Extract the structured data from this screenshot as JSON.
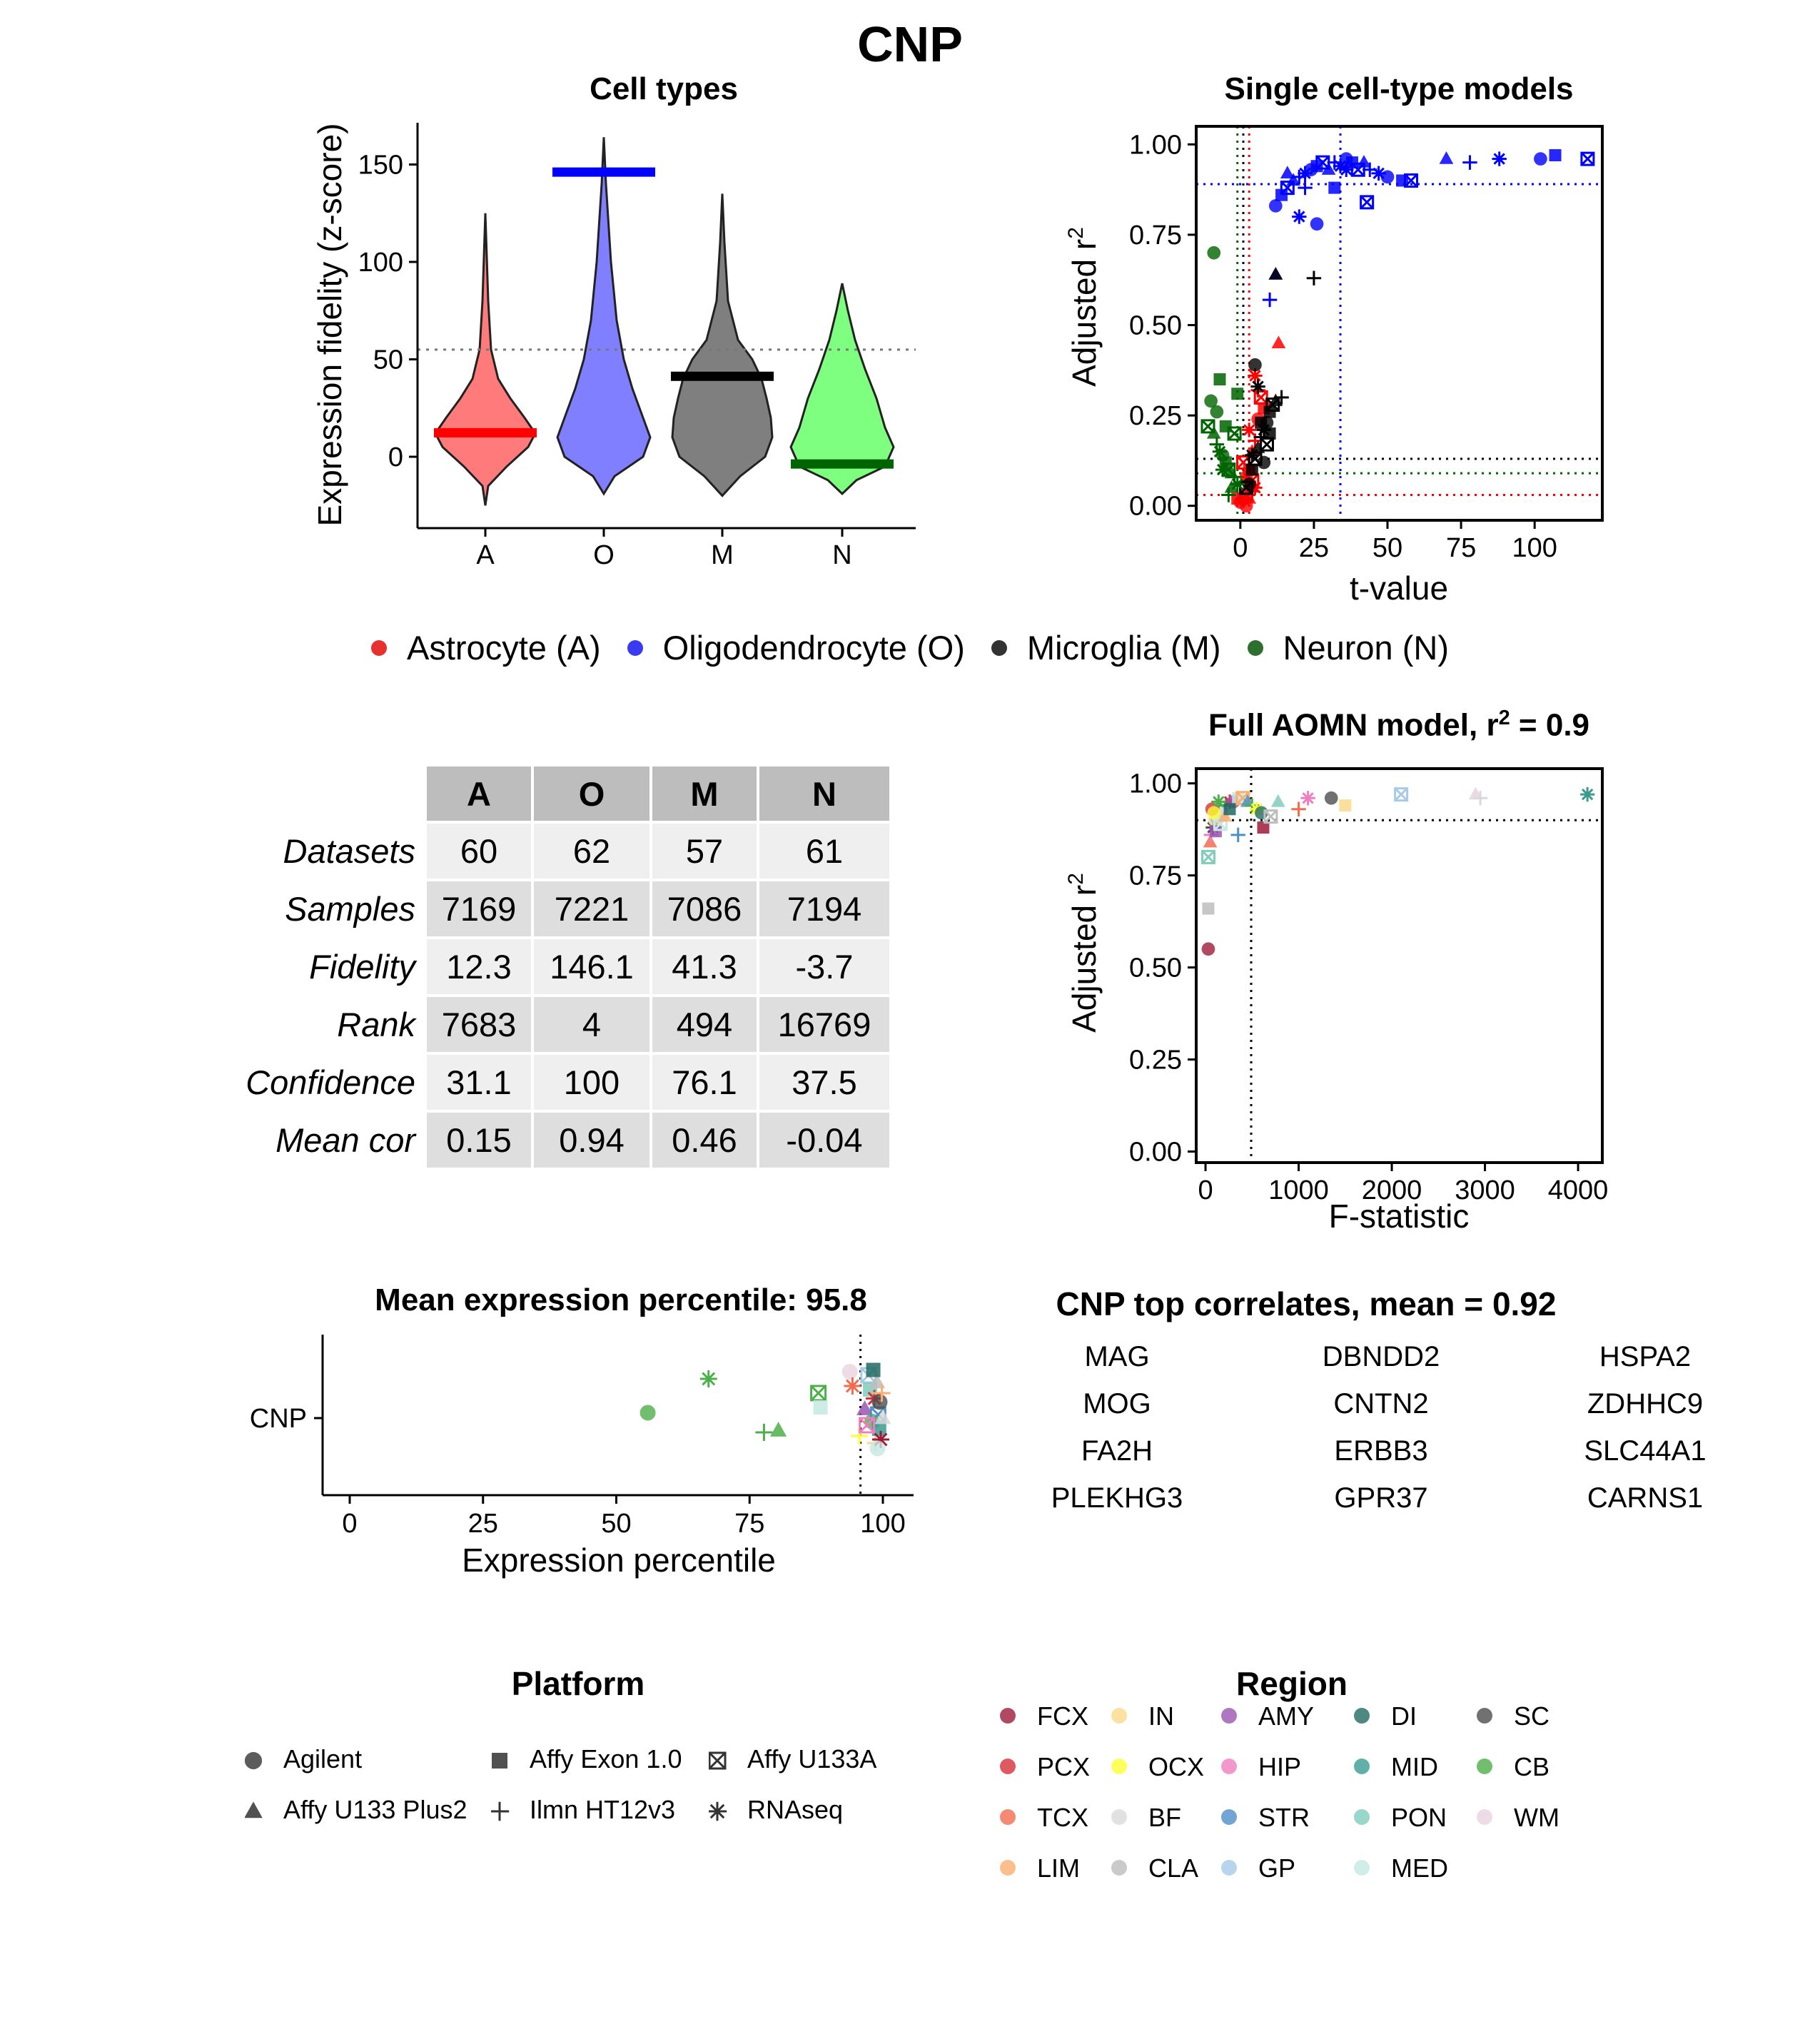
{
  "title": "CNP",
  "colors": {
    "astrocyte": "#ff0000",
    "oligodendrocyte": "#0000ff",
    "microglia": "#000000",
    "neuron": "#006400",
    "violin_fill": [
      "#ff7a7a",
      "#7f7fff",
      "#7f7f7f",
      "#7fff7f"
    ]
  },
  "cell_types_panel": {
    "title": "Cell types",
    "ylabel": "Expression fidelity (z-score)",
    "yticks": [
      "0",
      "50",
      "100",
      "150"
    ],
    "categories": [
      "A",
      "O",
      "M",
      "N"
    ]
  },
  "single_models_panel": {
    "title": "Single cell-type models",
    "xlabel": "t-value",
    "ylabel": "Adjusted r",
    "ylabel_sup": "2",
    "xticks": [
      "0",
      "25",
      "50",
      "75",
      "100"
    ],
    "yticks": [
      "0.00",
      "0.25",
      "0.50",
      "0.75",
      "1.00"
    ]
  },
  "legend": {
    "items": [
      {
        "label": "Astrocyte (A)",
        "color": "#ff0000"
      },
      {
        "label": "Oligodendrocyte (O)",
        "color": "#0000ff"
      },
      {
        "label": "Microglia (M)",
        "color": "#000000"
      },
      {
        "label": "Neuron (N)",
        "color": "#006400"
      }
    ]
  },
  "stats_table": {
    "columns": [
      "A",
      "O",
      "M",
      "N"
    ],
    "rows": [
      {
        "label": "Datasets",
        "values": [
          "60",
          "62",
          "57",
          "61"
        ]
      },
      {
        "label": "Samples",
        "values": [
          "7169",
          "7221",
          "7086",
          "7194"
        ]
      },
      {
        "label": "Fidelity",
        "values": [
          "12.3",
          "146.1",
          "41.3",
          "-3.7"
        ]
      },
      {
        "label": "Rank",
        "values": [
          "7683",
          "4",
          "494",
          "16769"
        ]
      },
      {
        "label": "Confidence",
        "values": [
          "31.1",
          "100",
          "76.1",
          "37.5"
        ]
      },
      {
        "label": "Mean cor",
        "values": [
          "0.15",
          "0.94",
          "0.46",
          "-0.04"
        ]
      }
    ]
  },
  "full_model_panel": {
    "title_main": "Full AOMN model, r",
    "title_sup": "2",
    "title_tail": " = 0.9",
    "xlabel": "F-statistic",
    "ylabel": "Adjusted r",
    "ylabel_sup": "2",
    "xticks": [
      "0",
      "1000",
      "2000",
      "3000",
      "4000"
    ],
    "yticks": [
      "0.00",
      "0.25",
      "0.50",
      "0.75",
      "1.00"
    ]
  },
  "percentile_panel": {
    "title": "Mean expression percentile: 95.8",
    "xlabel": "Expression percentile",
    "ytick": "CNP",
    "xticks": [
      "0",
      "25",
      "50",
      "75",
      "100"
    ]
  },
  "correlates": {
    "title": "CNP top correlates, mean = 0.92",
    "genes": [
      "MAG",
      "DBNDD2",
      "HSPA2",
      "MOG",
      "CNTN2",
      "ZDHHC9",
      "FA2H",
      "ERBB3",
      "SLC44A1",
      "PLEKHG3",
      "GPR37",
      "CARNS1"
    ]
  },
  "platform_legend": {
    "title": "Platform",
    "items": [
      {
        "label": "Agilent",
        "shape": "circle"
      },
      {
        "label": "Affy Exon 1.0",
        "shape": "square"
      },
      {
        "label": "Affy U133A",
        "shape": "boxed-x"
      },
      {
        "label": "Affy U133 Plus2",
        "shape": "triangle"
      },
      {
        "label": "Ilmn HT12v3",
        "shape": "plus"
      },
      {
        "label": "RNAseq",
        "shape": "asterisk"
      }
    ]
  },
  "region_legend": {
    "title": "Region",
    "items": [
      {
        "label": "FCX",
        "color": "#9e1b3a"
      },
      {
        "label": "PCX",
        "color": "#d7303a"
      },
      {
        "label": "TCX",
        "color": "#f36b4f"
      },
      {
        "label": "LIM",
        "color": "#fcae6e"
      },
      {
        "label": "IN",
        "color": "#fcd98c"
      },
      {
        "label": "OCX",
        "color": "#ffff33"
      },
      {
        "label": "BF",
        "color": "#d9d9d9"
      },
      {
        "label": "CLA",
        "color": "#bdbdbd"
      },
      {
        "label": "AMY",
        "color": "#9a56b0"
      },
      {
        "label": "HIP",
        "color": "#ef7ec0"
      },
      {
        "label": "STR",
        "color": "#4f8fc8"
      },
      {
        "label": "GP",
        "color": "#a6cbe6"
      },
      {
        "label": "DI",
        "color": "#206a61"
      },
      {
        "label": "MID",
        "color": "#3b9b91"
      },
      {
        "label": "PON",
        "color": "#7fcdbb"
      },
      {
        "label": "MED",
        "color": "#c6e9e3"
      },
      {
        "label": "SC",
        "color": "#4d4d4d"
      },
      {
        "label": "CB",
        "color": "#4daf4a"
      },
      {
        "label": "WM",
        "color": "#e8d3df"
      }
    ]
  },
  "chart_data": [
    {
      "type": "violin",
      "title": "Cell types",
      "ylabel": "Expression fidelity (z-score)",
      "categories": [
        "A",
        "O",
        "M",
        "N"
      ],
      "fidelity": [
        12.3,
        146.1,
        41.3,
        -3.7
      ],
      "range_min": [
        -25,
        -19,
        -20,
        -19
      ],
      "range_max": [
        125,
        164,
        135,
        89
      ],
      "threshold": 55,
      "ylim": [
        -35,
        172
      ],
      "grid": false
    },
    {
      "type": "scatter",
      "title": "Single cell-type models",
      "xlabel": "t-value",
      "ylabel": "Adjusted r2",
      "xlim": [
        -15,
        123
      ],
      "ylim": [
        -0.04,
        1.05
      ],
      "reference_lines": {
        "vertical": [
          {
            "cell": "O",
            "x": 34
          },
          {
            "cell": "A",
            "x": 3
          },
          {
            "cell": "M",
            "x": 1
          },
          {
            "cell": "N",
            "x": -1
          }
        ],
        "horizontal": [
          {
            "cell": "O",
            "y": 0.89
          },
          {
            "cell": "M",
            "y": 0.13
          },
          {
            "cell": "N",
            "y": 0.09
          },
          {
            "cell": "A",
            "y": 0.03
          }
        ]
      },
      "series": [
        {
          "name": "Oligodendrocyte (O)",
          "points": [
            [
              12,
              0.83
            ],
            [
              14,
              0.86
            ],
            [
              16,
              0.88
            ],
            [
              18,
              0.9
            ],
            [
              20,
              0.91
            ],
            [
              22,
              0.92
            ],
            [
              24,
              0.93
            ],
            [
              26,
              0.94
            ],
            [
              28,
              0.95
            ],
            [
              30,
              0.93
            ],
            [
              32,
              0.95
            ],
            [
              34,
              0.94
            ],
            [
              36,
              0.96
            ],
            [
              38,
              0.95
            ],
            [
              40,
              0.93
            ],
            [
              42,
              0.95
            ],
            [
              44,
              0.93
            ],
            [
              47,
              0.92
            ],
            [
              50,
              0.91
            ],
            [
              55,
              0.9
            ],
            [
              58,
              0.9
            ],
            [
              12,
              0.64
            ],
            [
              10,
              0.57
            ],
            [
              20,
              0.8
            ],
            [
              26,
              0.78
            ],
            [
              32,
              0.88
            ],
            [
              43,
              0.84
            ],
            [
              70,
              0.96
            ],
            [
              78,
              0.95
            ],
            [
              88,
              0.96
            ],
            [
              102,
              0.96
            ],
            [
              107,
              0.97
            ],
            [
              118,
              0.96
            ],
            [
              16,
              0.92
            ],
            [
              22,
              0.88
            ],
            [
              36,
              0.93
            ]
          ]
        },
        {
          "name": "Astrocyte (A)",
          "points": [
            [
              0,
              0.01
            ],
            [
              1,
              0.02
            ],
            [
              2,
              0.03
            ],
            [
              3,
              0.02
            ],
            [
              4,
              0.04
            ],
            [
              5,
              0.05
            ],
            [
              2,
              0.08
            ],
            [
              3,
              0.1
            ],
            [
              1,
              0.12
            ],
            [
              4,
              0.15
            ],
            [
              5,
              0.18
            ],
            [
              3,
              0.21
            ],
            [
              6,
              0.24
            ],
            [
              8,
              0.27
            ],
            [
              7,
              0.3
            ],
            [
              13,
              0.45
            ],
            [
              6,
              0.32
            ],
            [
              5,
              0.36
            ],
            [
              2,
              0.0
            ],
            [
              -1,
              0.02
            ],
            [
              4,
              0.07
            ]
          ]
        },
        {
          "name": "Microglia (M)",
          "points": [
            [
              3,
              0.06
            ],
            [
              4,
              0.1
            ],
            [
              5,
              0.13
            ],
            [
              6,
              0.16
            ],
            [
              7,
              0.19
            ],
            [
              8,
              0.21
            ],
            [
              9,
              0.23
            ],
            [
              10,
              0.26
            ],
            [
              11,
              0.28
            ],
            [
              12,
              0.29
            ],
            [
              14,
              0.3
            ],
            [
              6,
              0.33
            ],
            [
              5,
              0.39
            ],
            [
              7,
              0.23
            ],
            [
              9,
              0.17
            ],
            [
              12,
              0.64
            ],
            [
              25,
              0.63
            ],
            [
              4,
              0.14
            ],
            [
              8,
              0.12
            ],
            [
              10,
              0.2
            ],
            [
              2,
              0.05
            ]
          ]
        },
        {
          "name": "Neuron (N)",
          "points": [
            [
              -9,
              0.7
            ],
            [
              -7,
              0.35
            ],
            [
              -11,
              0.22
            ],
            [
              -9,
              0.2
            ],
            [
              -8,
              0.17
            ],
            [
              -7,
              0.15
            ],
            [
              -6,
              0.14
            ],
            [
              -5,
              0.12
            ],
            [
              -4,
              0.1
            ],
            [
              -3,
              0.09
            ],
            [
              -2,
              0.08
            ],
            [
              -1,
              0.06
            ],
            [
              -10,
              0.29
            ],
            [
              -5,
              0.22
            ],
            [
              -2,
              0.2
            ],
            [
              -3,
              0.05
            ],
            [
              -4,
              0.03
            ],
            [
              -6,
              0.1
            ],
            [
              -8,
              0.26
            ],
            [
              -1,
              0.31
            ]
          ]
        }
      ]
    },
    {
      "type": "scatter",
      "title": "Full AOMN model, r2 = 0.9",
      "xlabel": "F-statistic",
      "ylabel": "Adjusted r2",
      "xlim": [
        -100,
        4260
      ],
      "ylim": [
        -0.03,
        1.04
      ],
      "reference_lines": {
        "vertical": [
          {
            "x": 490
          }
        ],
        "horizontal": [
          {
            "y": 0.9
          }
        ]
      },
      "points": [
        [
          30,
          0.55
        ],
        [
          30,
          0.66
        ],
        [
          30,
          0.8
        ],
        [
          50,
          0.84
        ],
        [
          60,
          0.86
        ],
        [
          80,
          0.88
        ],
        [
          100,
          0.9
        ],
        [
          120,
          0.91
        ],
        [
          150,
          0.92
        ],
        [
          180,
          0.93
        ],
        [
          220,
          0.94
        ],
        [
          260,
          0.95
        ],
        [
          300,
          0.95
        ],
        [
          350,
          0.96
        ],
        [
          400,
          0.96
        ],
        [
          450,
          0.95
        ],
        [
          500,
          0.94
        ],
        [
          550,
          0.93
        ],
        [
          600,
          0.92
        ],
        [
          620,
          0.88
        ],
        [
          700,
          0.91
        ],
        [
          780,
          0.95
        ],
        [
          1000,
          0.93
        ],
        [
          1100,
          0.96
        ],
        [
          1350,
          0.96
        ],
        [
          1500,
          0.94
        ],
        [
          2100,
          0.97
        ],
        [
          2900,
          0.97
        ],
        [
          2950,
          0.96
        ],
        [
          4100,
          0.97
        ],
        [
          70,
          0.93
        ],
        [
          110,
          0.87
        ],
        [
          160,
          0.89
        ],
        [
          210,
          0.91
        ],
        [
          350,
          0.86
        ],
        [
          140,
          0.95
        ],
        [
          90,
          0.92
        ],
        [
          260,
          0.93
        ]
      ]
    },
    {
      "type": "scatter",
      "title": "Mean expression percentile: 95.8",
      "xlabel": "Expression percentile",
      "categories": [
        "CNP"
      ],
      "xlim": [
        -5,
        105
      ],
      "mean_line": 95.8,
      "points": [
        [
          55.9,
          0.03
        ],
        [
          67.3,
          0.22
        ],
        [
          77.7,
          -0.08
        ],
        [
          80.4,
          -0.07
        ],
        [
          87.9,
          0.14
        ],
        [
          88.3,
          0.06
        ],
        [
          93.8,
          0.26
        ],
        [
          94.3,
          0.18
        ],
        [
          95.6,
          -0.1
        ],
        [
          96.6,
          0.05
        ],
        [
          97.3,
          0.24
        ],
        [
          97.6,
          0.16
        ],
        [
          98.0,
          -0.02
        ],
        [
          98.4,
          0.11
        ],
        [
          98.6,
          -0.14
        ],
        [
          98.9,
          0.2
        ],
        [
          99.1,
          0.02
        ],
        [
          99.3,
          -0.06
        ],
        [
          99.4,
          0.09
        ],
        [
          99.6,
          -0.12
        ],
        [
          99.8,
          0.14
        ],
        [
          100,
          0.0
        ],
        [
          97.0,
          -0.04
        ],
        [
          98.2,
          0.27
        ],
        [
          99.0,
          -0.17
        ]
      ]
    }
  ]
}
